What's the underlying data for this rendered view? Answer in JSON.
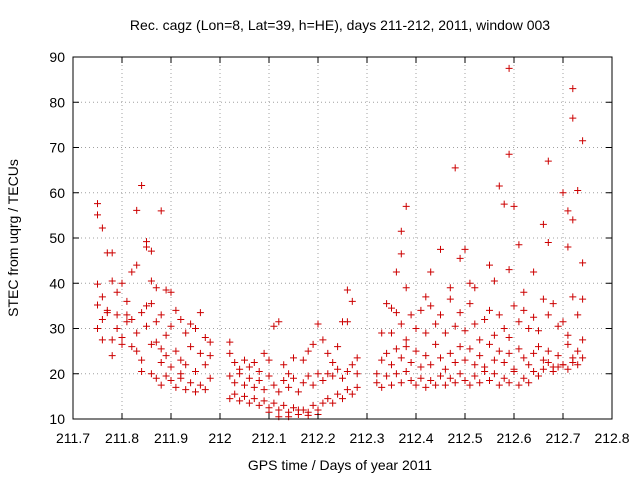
{
  "chart_data": {
    "type": "scatter",
    "title": "Rec. cagz (Lon=8, Lat=39, h=HE), days 211-212, 2011, window 003",
    "xlabel": "GPS time / Days of year 2011",
    "ylabel": "STEC from uqrg / TECUs",
    "xlim": [
      211.7,
      212.8
    ],
    "ylim": [
      10,
      90
    ],
    "x_ticks": [
      211.7,
      211.8,
      211.9,
      212.0,
      212.1,
      212.2,
      212.3,
      212.4,
      212.5,
      212.6,
      212.7,
      212.8
    ],
    "x_tick_labels": [
      "211.7",
      "211.8",
      "211.9",
      "212",
      "212.1",
      "212.2",
      "212.3",
      "212.4",
      "212.5",
      "212.6",
      "212.7",
      "212.8"
    ],
    "y_ticks": [
      10,
      20,
      30,
      40,
      50,
      60,
      70,
      80,
      90
    ],
    "y_tick_labels": [
      "10",
      "20",
      "30",
      "40",
      "50",
      "60",
      "70",
      "80",
      "90"
    ],
    "grid": true,
    "marker": "+",
    "color": "#cc0000",
    "points": [
      [
        211.75,
        57.6
      ],
      [
        211.75,
        55.1
      ],
      [
        211.76,
        52.2
      ],
      [
        211.77,
        46.7
      ],
      [
        211.78,
        46.7
      ],
      [
        211.84,
        61.6
      ],
      [
        211.83,
        56.1
      ],
      [
        211.88,
        56.0
      ],
      [
        211.85,
        49.2
      ],
      [
        211.85,
        48.0
      ],
      [
        211.86,
        47.1
      ],
      [
        211.75,
        39.8
      ],
      [
        211.75,
        35.2
      ],
      [
        211.76,
        37.0
      ],
      [
        211.77,
        34.0
      ],
      [
        211.78,
        40.5
      ],
      [
        211.79,
        38.0
      ],
      [
        211.8,
        40.0
      ],
      [
        211.81,
        36.0
      ],
      [
        211.82,
        42.5
      ],
      [
        211.83,
        44.0
      ],
      [
        211.86,
        40.5
      ],
      [
        211.87,
        39.0
      ],
      [
        211.89,
        38.5
      ],
      [
        211.9,
        38.0
      ],
      [
        211.75,
        30.0
      ],
      [
        211.76,
        32.0
      ],
      [
        211.76,
        27.5
      ],
      [
        211.77,
        33.5
      ],
      [
        211.78,
        27.5
      ],
      [
        211.79,
        30.0
      ],
      [
        211.79,
        33.0
      ],
      [
        211.8,
        28.0
      ],
      [
        211.81,
        31.5
      ],
      [
        211.81,
        33.0
      ],
      [
        211.82,
        32.0
      ],
      [
        211.83,
        29.0
      ],
      [
        211.84,
        33.5
      ],
      [
        211.85,
        35.0
      ],
      [
        211.85,
        30.5
      ],
      [
        211.86,
        35.5
      ],
      [
        211.87,
        31.5
      ],
      [
        211.88,
        33.0
      ],
      [
        211.89,
        28.5
      ],
      [
        211.9,
        30.5
      ],
      [
        211.91,
        34.0
      ],
      [
        211.92,
        32.0
      ],
      [
        211.93,
        29.0
      ],
      [
        211.94,
        31.0
      ],
      [
        211.95,
        30.0
      ],
      [
        211.96,
        33.5
      ],
      [
        211.97,
        28.0
      ],
      [
        211.78,
        24.0
      ],
      [
        211.8,
        26.5
      ],
      [
        211.82,
        26.0
      ],
      [
        211.83,
        25.0
      ],
      [
        211.84,
        23.0
      ],
      [
        211.86,
        26.5
      ],
      [
        211.87,
        27.0
      ],
      [
        211.88,
        25.5
      ],
      [
        211.88,
        22.5
      ],
      [
        211.89,
        24.0
      ],
      [
        211.9,
        21.5
      ],
      [
        211.91,
        25.0
      ],
      [
        211.92,
        23.0
      ],
      [
        211.92,
        20.0
      ],
      [
        211.93,
        22.0
      ],
      [
        211.94,
        26.0
      ],
      [
        211.95,
        20.5
      ],
      [
        211.96,
        24.5
      ],
      [
        211.97,
        22.0
      ],
      [
        211.98,
        24.0
      ],
      [
        211.98,
        27.0
      ],
      [
        211.84,
        20.5
      ],
      [
        211.86,
        20.0
      ],
      [
        211.87,
        19.0
      ],
      [
        211.88,
        17.5
      ],
      [
        211.89,
        19.5
      ],
      [
        211.9,
        18.5
      ],
      [
        211.91,
        17.0
      ],
      [
        211.92,
        19.0
      ],
      [
        211.93,
        16.5
      ],
      [
        211.94,
        18.0
      ],
      [
        211.95,
        16.0
      ],
      [
        211.96,
        17.5
      ],
      [
        211.97,
        16.5
      ],
      [
        211.98,
        19.0
      ],
      [
        212.02,
        27.0
      ],
      [
        212.02,
        24.5
      ],
      [
        212.03,
        22.5
      ],
      [
        212.04,
        21.0
      ],
      [
        212.05,
        23.0
      ],
      [
        212.06,
        21.5
      ],
      [
        212.07,
        22.5
      ],
      [
        212.08,
        20.5
      ],
      [
        212.09,
        24.5
      ],
      [
        212.1,
        23.0
      ],
      [
        212.11,
        30.5
      ],
      [
        212.12,
        31.5
      ],
      [
        212.13,
        22.0
      ],
      [
        212.14,
        20.0
      ],
      [
        212.15,
        23.5
      ],
      [
        212.17,
        23.0
      ],
      [
        212.18,
        25.0
      ],
      [
        212.19,
        26.5
      ],
      [
        212.2,
        31.0
      ],
      [
        212.21,
        27.5
      ],
      [
        212.22,
        24.5
      ],
      [
        212.23,
        22.5
      ],
      [
        212.24,
        26.0
      ],
      [
        212.25,
        31.5
      ],
      [
        212.26,
        38.5
      ],
      [
        212.27,
        36.0
      ],
      [
        212.26,
        31.5
      ],
      [
        212.28,
        23.5
      ],
      [
        212.02,
        19.5
      ],
      [
        212.03,
        18.0
      ],
      [
        212.04,
        20.0
      ],
      [
        212.05,
        17.5
      ],
      [
        212.06,
        19.0
      ],
      [
        212.07,
        17.0
      ],
      [
        212.08,
        18.5
      ],
      [
        212.09,
        16.5
      ],
      [
        212.1,
        19.5
      ],
      [
        212.11,
        17.5
      ],
      [
        212.12,
        16.0
      ],
      [
        212.13,
        18.5
      ],
      [
        212.14,
        17.0
      ],
      [
        212.15,
        19.0
      ],
      [
        212.16,
        16.0
      ],
      [
        212.17,
        18.0
      ],
      [
        212.18,
        19.5
      ],
      [
        212.19,
        17.5
      ],
      [
        212.2,
        20.0
      ],
      [
        212.21,
        18.5
      ],
      [
        212.22,
        20.0
      ],
      [
        212.23,
        19.5
      ],
      [
        212.24,
        21.0
      ],
      [
        212.25,
        19.0
      ],
      [
        212.26,
        20.5
      ],
      [
        212.27,
        22.0
      ],
      [
        212.28,
        20.0
      ],
      [
        212.02,
        14.5
      ],
      [
        212.03,
        15.5
      ],
      [
        212.04,
        14.0
      ],
      [
        212.05,
        15.0
      ],
      [
        212.06,
        13.5
      ],
      [
        212.07,
        14.5
      ],
      [
        212.08,
        13.0
      ],
      [
        212.09,
        14.0
      ],
      [
        212.1,
        12.5
      ],
      [
        212.11,
        13.5
      ],
      [
        212.12,
        12.0
      ],
      [
        212.13,
        13.0
      ],
      [
        212.14,
        11.5
      ],
      [
        212.15,
        12.5
      ],
      [
        212.16,
        11.0
      ],
      [
        212.17,
        12.0
      ],
      [
        212.18,
        11.5
      ],
      [
        212.19,
        13.0
      ],
      [
        212.2,
        12.0
      ],
      [
        212.21,
        13.5
      ],
      [
        212.22,
        14.5
      ],
      [
        212.23,
        13.5
      ],
      [
        212.24,
        15.5
      ],
      [
        212.25,
        14.5
      ],
      [
        212.26,
        16.5
      ],
      [
        212.27,
        15.5
      ],
      [
        212.28,
        17.0
      ],
      [
        212.1,
        11.5
      ],
      [
        212.12,
        10.5
      ],
      [
        212.14,
        10.5
      ],
      [
        212.16,
        12.0
      ],
      [
        212.18,
        10.8
      ],
      [
        212.2,
        11.0
      ],
      [
        212.38,
        57.0
      ],
      [
        212.37,
        51.5
      ],
      [
        212.37,
        46.5
      ],
      [
        212.36,
        42.5
      ],
      [
        212.38,
        39.0
      ],
      [
        212.42,
        37.0
      ],
      [
        212.43,
        42.5
      ],
      [
        212.45,
        47.5
      ],
      [
        212.47,
        39.0
      ],
      [
        212.48,
        65.5
      ],
      [
        212.49,
        45.5
      ],
      [
        212.5,
        47.5
      ],
      [
        212.51,
        40.0
      ],
      [
        212.52,
        39.0
      ],
      [
        212.55,
        44.0
      ],
      [
        212.56,
        40.5
      ],
      [
        212.57,
        61.5
      ],
      [
        212.58,
        57.5
      ],
      [
        212.59,
        43.0
      ],
      [
        212.59,
        68.5
      ],
      [
        212.59,
        87.5
      ],
      [
        212.6,
        57.0
      ],
      [
        212.61,
        48.5
      ],
      [
        212.62,
        38.0
      ],
      [
        212.64,
        42.5
      ],
      [
        212.66,
        53.0
      ],
      [
        212.67,
        49.0
      ],
      [
        212.67,
        67.0
      ],
      [
        212.7,
        60.0
      ],
      [
        212.71,
        56.0
      ],
      [
        212.71,
        48.0
      ],
      [
        212.72,
        54.0
      ],
      [
        212.72,
        76.5
      ],
      [
        212.72,
        83.0
      ],
      [
        212.73,
        60.5
      ],
      [
        212.74,
        71.5
      ],
      [
        212.74,
        44.5
      ],
      [
        212.33,
        29.0
      ],
      [
        212.34,
        35.5
      ],
      [
        212.35,
        34.5
      ],
      [
        212.35,
        29.0
      ],
      [
        212.36,
        33.5
      ],
      [
        212.37,
        31.0
      ],
      [
        212.38,
        27.5
      ],
      [
        212.39,
        33.0
      ],
      [
        212.4,
        30.0
      ],
      [
        212.41,
        34.0
      ],
      [
        212.42,
        29.0
      ],
      [
        212.43,
        35.0
      ],
      [
        212.44,
        31.0
      ],
      [
        212.45,
        33.0
      ],
      [
        212.46,
        29.0
      ],
      [
        212.47,
        36.5
      ],
      [
        212.48,
        30.5
      ],
      [
        212.49,
        33.5
      ],
      [
        212.5,
        29.5
      ],
      [
        212.51,
        35.5
      ],
      [
        212.52,
        31.0
      ],
      [
        212.53,
        27.5
      ],
      [
        212.54,
        32.0
      ],
      [
        212.55,
        34.0
      ],
      [
        212.56,
        28.5
      ],
      [
        212.57,
        33.0
      ],
      [
        212.58,
        30.0
      ],
      [
        212.59,
        28.0
      ],
      [
        212.6,
        35.0
      ],
      [
        212.61,
        31.5
      ],
      [
        212.62,
        34.0
      ],
      [
        212.63,
        30.0
      ],
      [
        212.64,
        32.5
      ],
      [
        212.65,
        29.5
      ],
      [
        212.66,
        36.5
      ],
      [
        212.67,
        33.0
      ],
      [
        212.68,
        35.5
      ],
      [
        212.69,
        30.5
      ],
      [
        212.7,
        31.5
      ],
      [
        212.71,
        28.5
      ],
      [
        212.72,
        37.0
      ],
      [
        212.73,
        33.0
      ],
      [
        212.74,
        36.5
      ],
      [
        212.33,
        23.0
      ],
      [
        212.34,
        24.5
      ],
      [
        212.35,
        22.0
      ],
      [
        212.36,
        25.5
      ],
      [
        212.37,
        23.5
      ],
      [
        212.38,
        26.0
      ],
      [
        212.39,
        22.5
      ],
      [
        212.4,
        25.0
      ],
      [
        212.41,
        21.5
      ],
      [
        212.42,
        24.0
      ],
      [
        212.43,
        22.0
      ],
      [
        212.44,
        26.5
      ],
      [
        212.45,
        23.5
      ],
      [
        212.46,
        21.0
      ],
      [
        212.47,
        24.5
      ],
      [
        212.48,
        22.5
      ],
      [
        212.49,
        26.0
      ],
      [
        212.5,
        23.0
      ],
      [
        212.51,
        25.5
      ],
      [
        212.52,
        22.0
      ],
      [
        212.53,
        24.0
      ],
      [
        212.54,
        21.5
      ],
      [
        212.55,
        26.5
      ],
      [
        212.56,
        23.0
      ],
      [
        212.57,
        25.0
      ],
      [
        212.58,
        22.5
      ],
      [
        212.59,
        24.5
      ],
      [
        212.6,
        21.0
      ],
      [
        212.61,
        25.5
      ],
      [
        212.62,
        23.5
      ],
      [
        212.63,
        22.0
      ],
      [
        212.64,
        24.5
      ],
      [
        212.65,
        26.0
      ],
      [
        212.66,
        23.0
      ],
      [
        212.67,
        25.0
      ],
      [
        212.68,
        21.5
      ],
      [
        212.69,
        24.0
      ],
      [
        212.7,
        22.0
      ],
      [
        212.71,
        26.5
      ],
      [
        212.72,
        23.5
      ],
      [
        212.73,
        25.0
      ],
      [
        212.74,
        27.5
      ],
      [
        212.33,
        17.0
      ],
      [
        212.34,
        19.5
      ],
      [
        212.35,
        17.5
      ],
      [
        212.36,
        20.0
      ],
      [
        212.37,
        18.0
      ],
      [
        212.38,
        20.5
      ],
      [
        212.39,
        18.5
      ],
      [
        212.4,
        17.5
      ],
      [
        212.41,
        19.0
      ],
      [
        212.42,
        17.0
      ],
      [
        212.43,
        18.5
      ],
      [
        212.44,
        17.5
      ],
      [
        212.45,
        19.5
      ],
      [
        212.46,
        17.5
      ],
      [
        212.47,
        19.0
      ],
      [
        212.48,
        18.0
      ],
      [
        212.49,
        20.0
      ],
      [
        212.5,
        18.5
      ],
      [
        212.51,
        17.5
      ],
      [
        212.52,
        19.5
      ],
      [
        212.53,
        18.0
      ],
      [
        212.54,
        20.5
      ],
      [
        212.55,
        18.5
      ],
      [
        212.56,
        20.0
      ],
      [
        212.57,
        17.5
      ],
      [
        212.58,
        19.0
      ],
      [
        212.59,
        18.0
      ],
      [
        212.6,
        20.5
      ],
      [
        212.61,
        17.5
      ],
      [
        212.62,
        19.0
      ],
      [
        212.63,
        18.0
      ],
      [
        212.64,
        20.5
      ],
      [
        212.65,
        19.5
      ],
      [
        212.66,
        21.0
      ],
      [
        212.67,
        22.5
      ],
      [
        212.68,
        20.5
      ],
      [
        212.69,
        21.5
      ],
      [
        212.7,
        22.0
      ],
      [
        212.71,
        21.0
      ],
      [
        212.72,
        22.5
      ],
      [
        212.73,
        22.0
      ],
      [
        212.74,
        23.5
      ],
      [
        212.32,
        18.0
      ],
      [
        212.32,
        20.0
      ]
    ]
  }
}
